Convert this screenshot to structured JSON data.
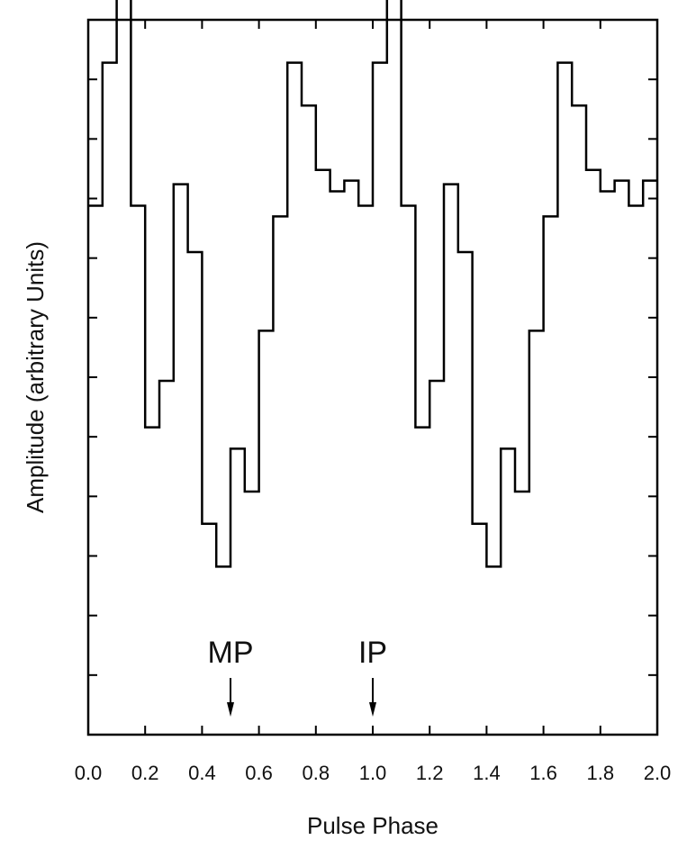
{
  "chart_data": {
    "type": "line",
    "style": "step",
    "title": "",
    "xlabel": "Pulse Phase",
    "ylabel": "Amplitude (arbitrary Units)",
    "xlim": [
      0.0,
      2.0
    ],
    "ylim": [
      0,
      100
    ],
    "grid": false,
    "x_tick_labels": [
      "0.0",
      "0.2",
      "0.4",
      "0.6",
      "0.8",
      "1.0",
      "1.2",
      "1.4",
      "1.6",
      "1.8",
      "2.0"
    ],
    "bin_width": 0.05,
    "series": [
      {
        "values": [
          74,
          94,
          104,
          74,
          43,
          49.5,
          77,
          67.5,
          29.5,
          23.5,
          40,
          34,
          56.5,
          72.5,
          94,
          88,
          79,
          76,
          77.5,
          74,
          94,
          104,
          74,
          43,
          49.5,
          77,
          67.5,
          29.5,
          23.5,
          40,
          34,
          56.5,
          72.5,
          94,
          88,
          79,
          76,
          77.5,
          74,
          77.5
        ]
      }
    ],
    "annotations": [
      {
        "text": "MP",
        "x": 0.5,
        "arrow": "down"
      },
      {
        "text": "IP",
        "x": 1.0,
        "arrow": "down"
      }
    ]
  }
}
